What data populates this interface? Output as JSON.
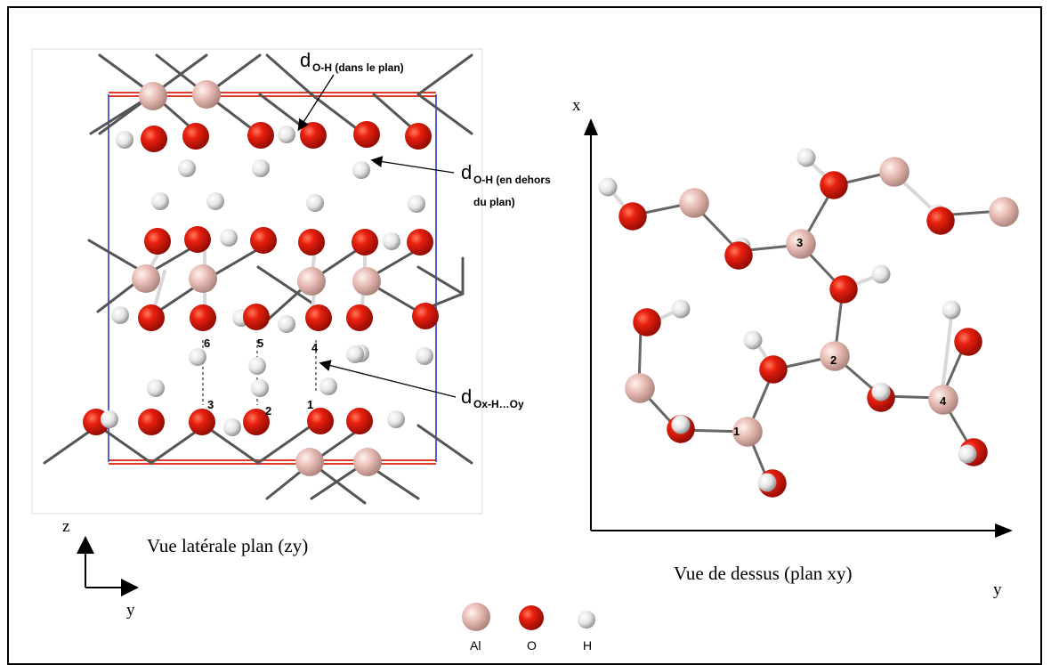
{
  "annotations": {
    "d_oh_in_plane_main": "d",
    "d_oh_in_plane_sub": "O-H (dans le plan)",
    "d_oh_out_plane_main": "d",
    "d_oh_out_plane_sub": "O-H (en dehors",
    "d_oh_out_plane_sub2": "du plan)",
    "d_oxy_main": "d",
    "d_oxy_sub": "Ox-H…Oy"
  },
  "left_panel": {
    "caption": "Vue latérale plan (zy)",
    "axis_vertical": "z",
    "axis_horizontal": "y",
    "site_numbers": [
      "6",
      "5",
      "4",
      "3",
      "2",
      "1"
    ]
  },
  "right_panel": {
    "caption": "Vue de dessus (plan xy)",
    "axis_vertical": "x",
    "axis_horizontal": "y",
    "site_numbers": [
      "3",
      "2",
      "1",
      "4"
    ]
  },
  "legend": {
    "items": [
      {
        "label": "Al",
        "color": "#e9bfb8"
      },
      {
        "label": "O",
        "color": "#e01f0e"
      },
      {
        "label": "H",
        "color": "#f2f2f2"
      }
    ]
  }
}
